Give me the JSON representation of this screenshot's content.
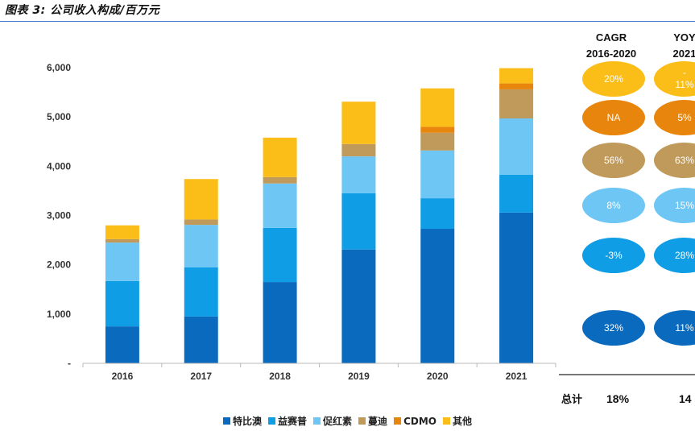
{
  "title": "图表 3: 公司收入构成/百万元",
  "chart_data": {
    "type": "bar",
    "stacked": true,
    "categories": [
      "2016",
      "2017",
      "2018",
      "2019",
      "2020",
      "2021"
    ],
    "ylim": [
      0,
      6000
    ],
    "yticks": [
      0,
      1000,
      2000,
      3000,
      4000,
      5000,
      6000
    ],
    "ytick_labels": [
      "-",
      "1,000",
      "2,000",
      "3,000",
      "4,000",
      "5,000",
      "6,000"
    ],
    "series": [
      {
        "name": "特比澳",
        "color": "#0a6abd",
        "values": [
          750,
          950,
          1650,
          2310,
          2730,
          3060
        ]
      },
      {
        "name": "益赛普",
        "color": "#0f9ee6",
        "values": [
          920,
          1000,
          1100,
          1140,
          620,
          770
        ]
      },
      {
        "name": "促红素",
        "color": "#6ec6f5",
        "values": [
          780,
          860,
          900,
          750,
          970,
          1140
        ]
      },
      {
        "name": "蔓迪",
        "color": "#c09a5b",
        "values": [
          70,
          110,
          130,
          250,
          360,
          590
        ]
      },
      {
        "name": "CDMO",
        "color": "#e8850c",
        "values": [
          0,
          0,
          0,
          0,
          120,
          120
        ]
      },
      {
        "name": "其他",
        "color": "#fbbd18",
        "values": [
          280,
          820,
          800,
          860,
          780,
          310
        ]
      }
    ]
  },
  "growth_table": {
    "col1_header_line1": "CAGR",
    "col1_header_line2": "2016-2020",
    "col2_header_line1": "YOY",
    "col2_header_line2": "2021",
    "rows": [
      {
        "series": "其他",
        "cagr": "20%",
        "yoy_line1": "-",
        "yoy_line2": "11%"
      },
      {
        "series": "CDMO",
        "cagr": "NA",
        "yoy_line1": "5%",
        "yoy_line2": ""
      },
      {
        "series": "蔓迪",
        "cagr": "56%",
        "yoy_line1": "63%",
        "yoy_line2": ""
      },
      {
        "series": "促红素",
        "cagr": "8%",
        "yoy_line1": "15%",
        "yoy_line2": ""
      },
      {
        "series": "益赛普",
        "cagr": "-3%",
        "yoy_line1": "28%",
        "yoy_line2": ""
      },
      {
        "series": "特比澳",
        "cagr": "32%",
        "yoy_line1": "11%",
        "yoy_line2": ""
      }
    ],
    "total_label": "总计",
    "total_cagr": "18%",
    "total_yoy": "14"
  },
  "colors": {
    "title_rule": "#3b79c9",
    "bubble_colors": [
      "#fbbd18",
      "#e8850c",
      "#c09a5b",
      "#6ec6f5",
      "#0f9ee6",
      "#0a6abd"
    ]
  }
}
